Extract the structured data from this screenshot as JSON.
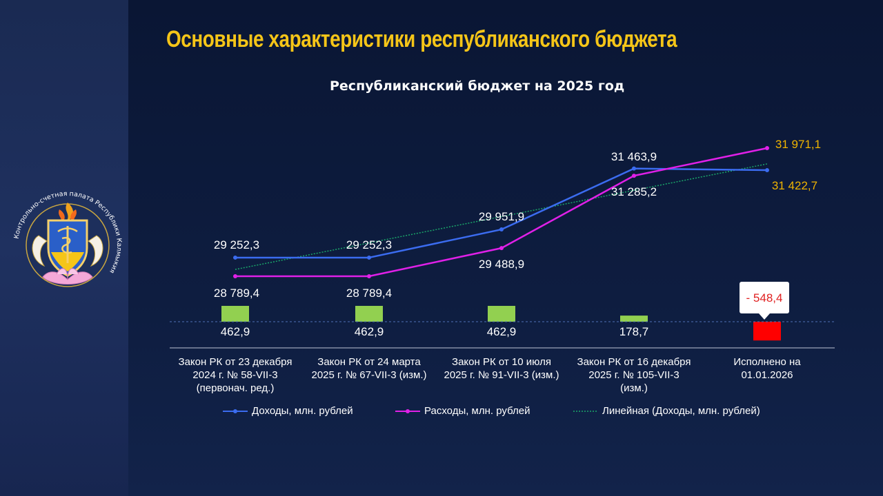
{
  "slide": {
    "title": "Основные характеристики республиканского бюджета"
  },
  "logo": {
    "text": "Контрольно-счетная палата Республики Калмыкия"
  },
  "colors": {
    "income": "#3b6cf0",
    "expense": "#e020e8",
    "trend": "#1aa86a",
    "surplus_bar": "#92d050",
    "deficit_bar": "#ff0000",
    "label_orange": "#f0b400",
    "title": "#f5c518"
  },
  "chart_data": {
    "type": "line",
    "title": "Республиканский бюджет на 2025 год",
    "categories": [
      "Закон РК от 23 декабря 2024 г. № 58-VII-3 (первонач. ред.)",
      "Закон РК от 24 марта 2025 г. № 67-VII-3 (изм.)",
      "Закон РК от 10 июля 2025 г. № 91-VII-3 (изм.)",
      "Закон РК от 16 декабря 2025 г. № 105-VII-3 (изм.)",
      "Исполнено на 01.01.2026"
    ],
    "category_lines": [
      [
        "Закон РК от 23 декабря",
        "2024 г. № 58-VII-3",
        "(первонач. ред.)"
      ],
      [
        "Закон РК от 24 марта",
        "2025 г. № 67-VII-3 (изм.)"
      ],
      [
        "Закон РК от 10 июля",
        "2025 г. № 91-VII-3 (изм.)"
      ],
      [
        "Закон РК от 16 декабря",
        "2025 г. № 105-VII-3",
        "(изм.)"
      ],
      [
        "Исполнено на",
        "01.01.2026"
      ]
    ],
    "series": [
      {
        "name": "Доходы, млн. рублей",
        "values": [
          29252.3,
          29252.3,
          29951.9,
          31463.9,
          31422.7
        ],
        "labels": [
          "29 252,3",
          "29 252,3",
          "29 951,9",
          "31 463,9",
          "31 422,7"
        ]
      },
      {
        "name": "Расходы, млн. рублей",
        "values": [
          28789.4,
          28789.4,
          29488.9,
          31285.2,
          31971.1
        ],
        "labels": [
          "28 789,4",
          "28 789,4",
          "29 488,9",
          "31 285,2",
          "31 971,1"
        ]
      }
    ],
    "trendline": {
      "name": "Линейная (Доходы, млн. рублей)",
      "of": "Доходы, млн. рублей",
      "type": "linear"
    },
    "balance": {
      "values": [
        462.9,
        462.9,
        462.9,
        178.7,
        -548.4
      ],
      "labels": [
        "462,9",
        "462,9",
        "462,9",
        "178,7",
        "- 548,4"
      ]
    },
    "legend_position": "bottom",
    "grid": false
  }
}
